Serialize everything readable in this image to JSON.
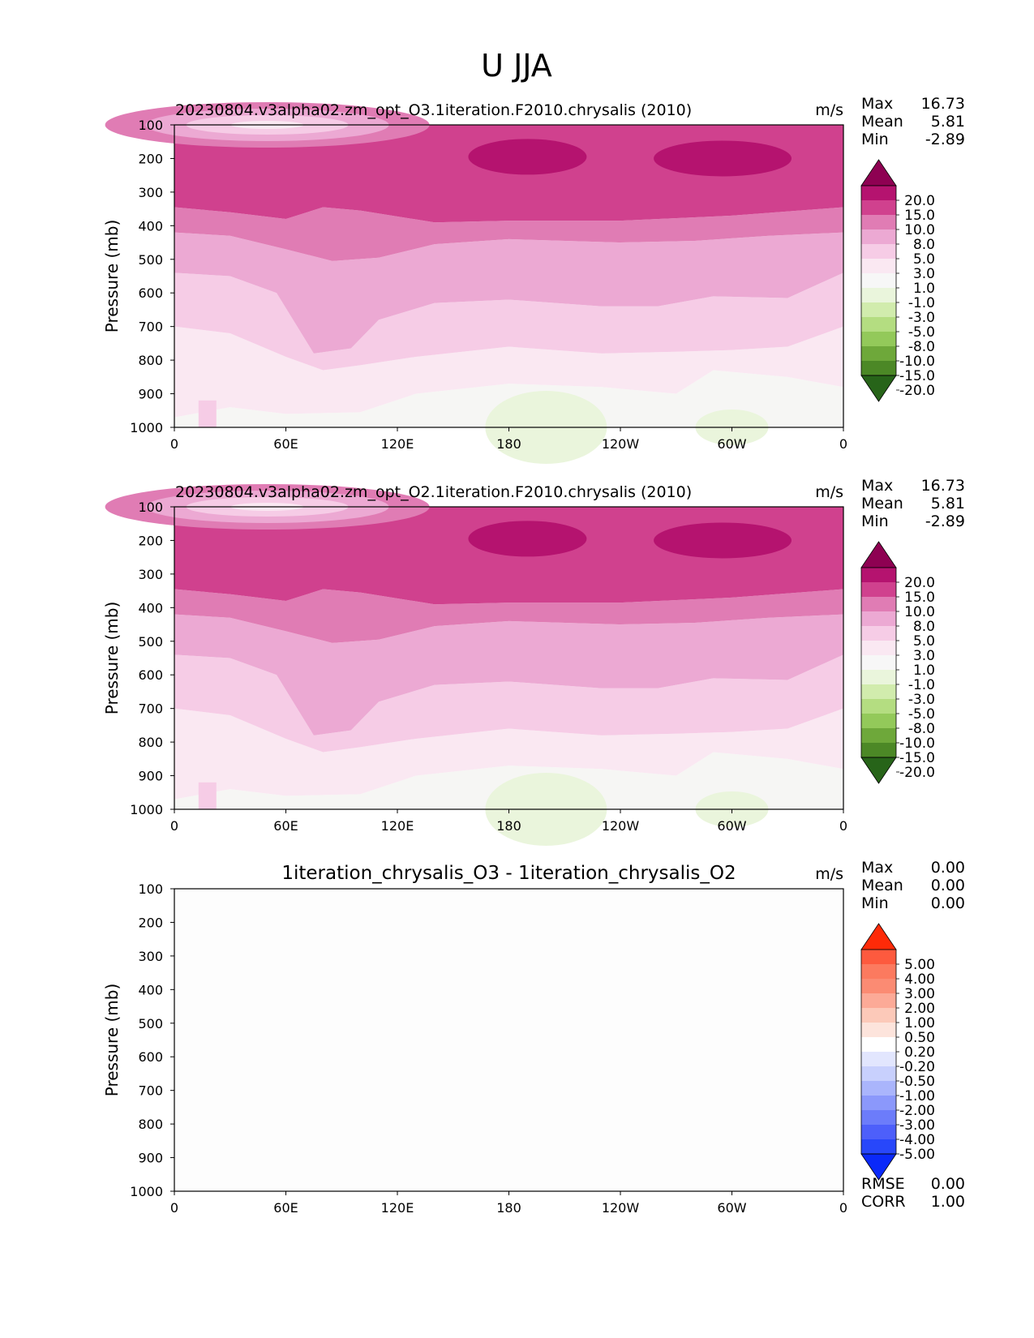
{
  "figure_title": "U JJA",
  "chart_data": [
    {
      "type": "contour",
      "title": "20230804.v3alpha02.zm_opt_O3.1iteration.F2010.chrysalis (2010)",
      "units": "m/s",
      "stats": [
        {
          "label": "Max",
          "value": "16.73"
        },
        {
          "label": "Mean",
          "value": "5.81"
        },
        {
          "label": "Min",
          "value": "-2.89"
        }
      ],
      "ylabel": "Pressure (mb)",
      "yticks": [
        "100",
        "200",
        "300",
        "400",
        "500",
        "600",
        "700",
        "800",
        "900",
        "1000"
      ],
      "ylim": [
        100,
        1000
      ],
      "xticks": [
        "0",
        "60E",
        "120E",
        "180",
        "120W",
        "60W",
        "0"
      ],
      "xlim": [
        0,
        360
      ],
      "colorbar_labels": [
        "20.0",
        "15.0",
        "10.0",
        "8.0",
        "5.0",
        "3.0",
        "1.0",
        "-1.0",
        "-3.0",
        "-5.0",
        "-8.0",
        "-10.0",
        "-15.0",
        "-20.0"
      ],
      "colorbar_colors": [
        "#8e0152",
        "#b5136f",
        "#d0418e",
        "#e07cb4",
        "#eca9d3",
        "#f6cce6",
        "#fae8f2",
        "#f7f7f7",
        "#eaf5dc",
        "#d1ecad",
        "#b4dd81",
        "#93c95a",
        "#6ea83a",
        "#4c8826",
        "#276419"
      ]
    },
    {
      "type": "contour",
      "title": "20230804.v3alpha02.zm_opt_O2.1iteration.F2010.chrysalis (2010)",
      "units": "m/s",
      "stats": [
        {
          "label": "Max",
          "value": "16.73"
        },
        {
          "label": "Mean",
          "value": "5.81"
        },
        {
          "label": "Min",
          "value": "-2.89"
        }
      ],
      "ylabel": "Pressure (mb)",
      "yticks": [
        "100",
        "200",
        "300",
        "400",
        "500",
        "600",
        "700",
        "800",
        "900",
        "1000"
      ],
      "ylim": [
        100,
        1000
      ],
      "xticks": [
        "0",
        "60E",
        "120E",
        "180",
        "120W",
        "60W",
        "0"
      ],
      "xlim": [
        0,
        360
      ],
      "colorbar_labels": [
        "20.0",
        "15.0",
        "10.0",
        "8.0",
        "5.0",
        "3.0",
        "1.0",
        "-1.0",
        "-3.0",
        "-5.0",
        "-8.0",
        "-10.0",
        "-15.0",
        "-20.0"
      ],
      "colorbar_colors": [
        "#8e0152",
        "#b5136f",
        "#d0418e",
        "#e07cb4",
        "#eca9d3",
        "#f6cce6",
        "#fae8f2",
        "#f7f7f7",
        "#eaf5dc",
        "#d1ecad",
        "#b4dd81",
        "#93c95a",
        "#6ea83a",
        "#4c8826",
        "#276419"
      ]
    },
    {
      "type": "contour",
      "title": "1iteration_chrysalis_O3 - 1iteration_chrysalis_O2",
      "units": "m/s",
      "stats": [
        {
          "label": "Max",
          "value": "0.00"
        },
        {
          "label": "Mean",
          "value": "0.00"
        },
        {
          "label": "Min",
          "value": "0.00"
        }
      ],
      "ylabel": "Pressure (mb)",
      "yticks": [
        "100",
        "200",
        "300",
        "400",
        "500",
        "600",
        "700",
        "800",
        "900",
        "1000"
      ],
      "ylim": [
        100,
        1000
      ],
      "xticks": [
        "0",
        "60E",
        "120E",
        "180",
        "120W",
        "60W",
        "0"
      ],
      "xlim": [
        0,
        360
      ],
      "colorbar_labels": [
        "5.00",
        "4.00",
        "3.00",
        "2.00",
        "1.00",
        "0.50",
        "0.20",
        "-0.20",
        "-0.50",
        "-1.00",
        "-2.00",
        "-3.00",
        "-4.00",
        "-5.00"
      ],
      "colorbar_colors": [
        "#fe2a08",
        "#fd5a3e",
        "#fc7a5f",
        "#fb8b73",
        "#fcaa97",
        "#fcc9b9",
        "#fde4dc",
        "#ffffff",
        "#e2e6fe",
        "#c8d0fd",
        "#aab5fc",
        "#8b98fb",
        "#6c7cfa",
        "#4d5ffa",
        "#2847fa",
        "#0a29f9"
      ],
      "fill_color": "#fdfdfd",
      "footer_stats": [
        {
          "label": "RMSE",
          "value": "0.00"
        },
        {
          "label": "CORR",
          "value": "1.00"
        }
      ]
    }
  ]
}
